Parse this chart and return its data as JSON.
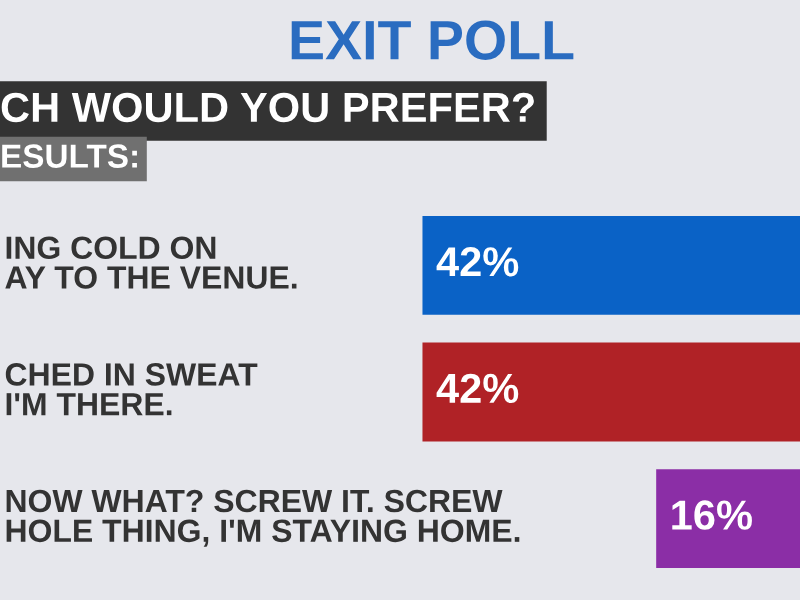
{
  "chart_data": {
    "type": "bar",
    "orientation": "horizontal",
    "title": "EXIT POLL",
    "subtitle": "CH WOULD YOU PREFER?",
    "annotations": [
      "ESULTS:"
    ],
    "categories": [
      "ING COLD ON\nAY TO THE VENUE.",
      "CHED IN SWEAT\nI'M THERE.",
      "NOW WHAT? SCREW IT. SCREW\nHOLE THING, I'M STAYING HOME."
    ],
    "values": [
      42,
      42,
      16
    ],
    "colors": [
      "#0a62c6",
      "#b02226",
      "#8b2ea6"
    ],
    "value_labels": [
      "42%",
      "42%",
      "16%"
    ],
    "xlim": [
      89,
      0
    ]
  }
}
